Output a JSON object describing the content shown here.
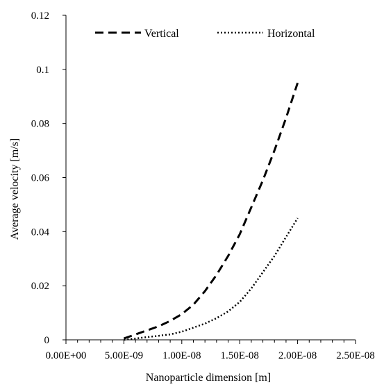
{
  "chart_data": {
    "type": "line",
    "title": "",
    "xlabel": "Nanoparticle dimension [m]",
    "ylabel": "Average velocity [m/s]",
    "xlim": [
      0,
      2.5e-08
    ],
    "ylim": [
      0,
      0.12
    ],
    "x_ticks": [
      0,
      5e-09,
      1e-08,
      1.5e-08,
      2e-08,
      2.5e-08
    ],
    "x_tick_labels": [
      "0.00E+00",
      "5.00E-09",
      "1.00E-08",
      "1.50E-08",
      "2.00E-08",
      "2.50E-08"
    ],
    "y_ticks": [
      0,
      0.02,
      0.04,
      0.06,
      0.08,
      0.1,
      0.12
    ],
    "y_tick_labels": [
      "0",
      "0.02",
      "0.04",
      "0.06",
      "0.08",
      "0.1",
      "0.12"
    ],
    "grid": false,
    "legend_position": "top",
    "series": [
      {
        "name": "Vertical",
        "style": "dashed",
        "color": "#000000",
        "x": [
          5e-09,
          6e-09,
          7e-09,
          8e-09,
          9e-09,
          1e-08,
          1.1e-08,
          1.2e-08,
          1.3e-08,
          1.4e-08,
          1.5e-08,
          1.6e-08,
          1.7e-08,
          1.8e-08,
          1.9e-08,
          2e-08
        ],
        "y": [
          0.0005,
          0.002,
          0.0035,
          0.005,
          0.007,
          0.0095,
          0.013,
          0.018,
          0.024,
          0.031,
          0.039,
          0.049,
          0.059,
          0.07,
          0.082,
          0.095
        ]
      },
      {
        "name": "Horizontal",
        "style": "dotted",
        "color": "#000000",
        "x": [
          5e-09,
          6e-09,
          7e-09,
          8e-09,
          9e-09,
          1e-08,
          1.1e-08,
          1.2e-08,
          1.3e-08,
          1.4e-08,
          1.5e-08,
          1.6e-08,
          1.7e-08,
          1.8e-08,
          1.9e-08,
          2e-08
        ],
        "y": [
          0.0,
          0.0005,
          0.001,
          0.0015,
          0.002,
          0.003,
          0.0045,
          0.006,
          0.008,
          0.0105,
          0.014,
          0.019,
          0.025,
          0.031,
          0.038,
          0.045
        ]
      }
    ]
  }
}
